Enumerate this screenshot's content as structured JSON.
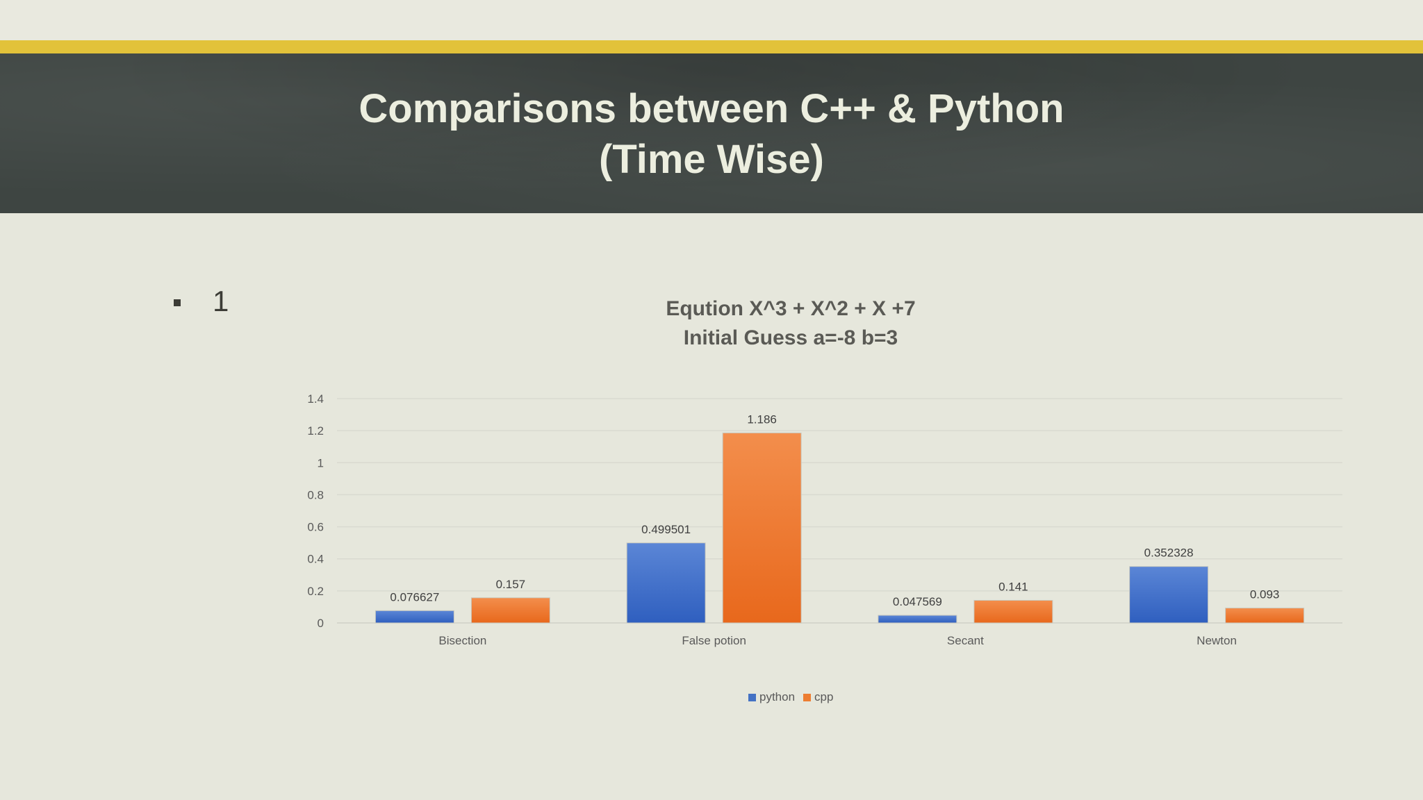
{
  "slide": {
    "title_line1": "Comparisons between C++ & Python",
    "title_line2": "(Time Wise)",
    "bullet_text": "1"
  },
  "colors": {
    "python": "#4472c4",
    "cpp": "#ed7d31",
    "accent": "#e2c23a",
    "header_bg": "#3e4542"
  },
  "chart_data": {
    "type": "bar",
    "title": "Eqution X^3 + X^2 + X +7",
    "subtitle": "Initial Guess  a=-8 b=3",
    "categories": [
      "Bisection",
      "False potion",
      "Secant",
      "Newton"
    ],
    "series": [
      {
        "name": "python",
        "values": [
          0.076627,
          0.499501,
          0.047569,
          0.352328
        ],
        "labels": [
          "0.076627",
          "0.499501",
          "0.047569",
          "0.352328"
        ]
      },
      {
        "name": "cpp",
        "values": [
          0.157,
          1.186,
          0.141,
          0.093
        ],
        "labels": [
          "0.157",
          "1.186",
          "0.141",
          "0.093"
        ]
      }
    ],
    "yticks": [
      "0",
      "0.2",
      "0.4",
      "0.6",
      "0.8",
      "1",
      "1.2",
      "1.4"
    ],
    "ylim": [
      0,
      1.4
    ],
    "xlabel": "",
    "ylabel": "",
    "grid": true,
    "legend_position": "bottom"
  }
}
